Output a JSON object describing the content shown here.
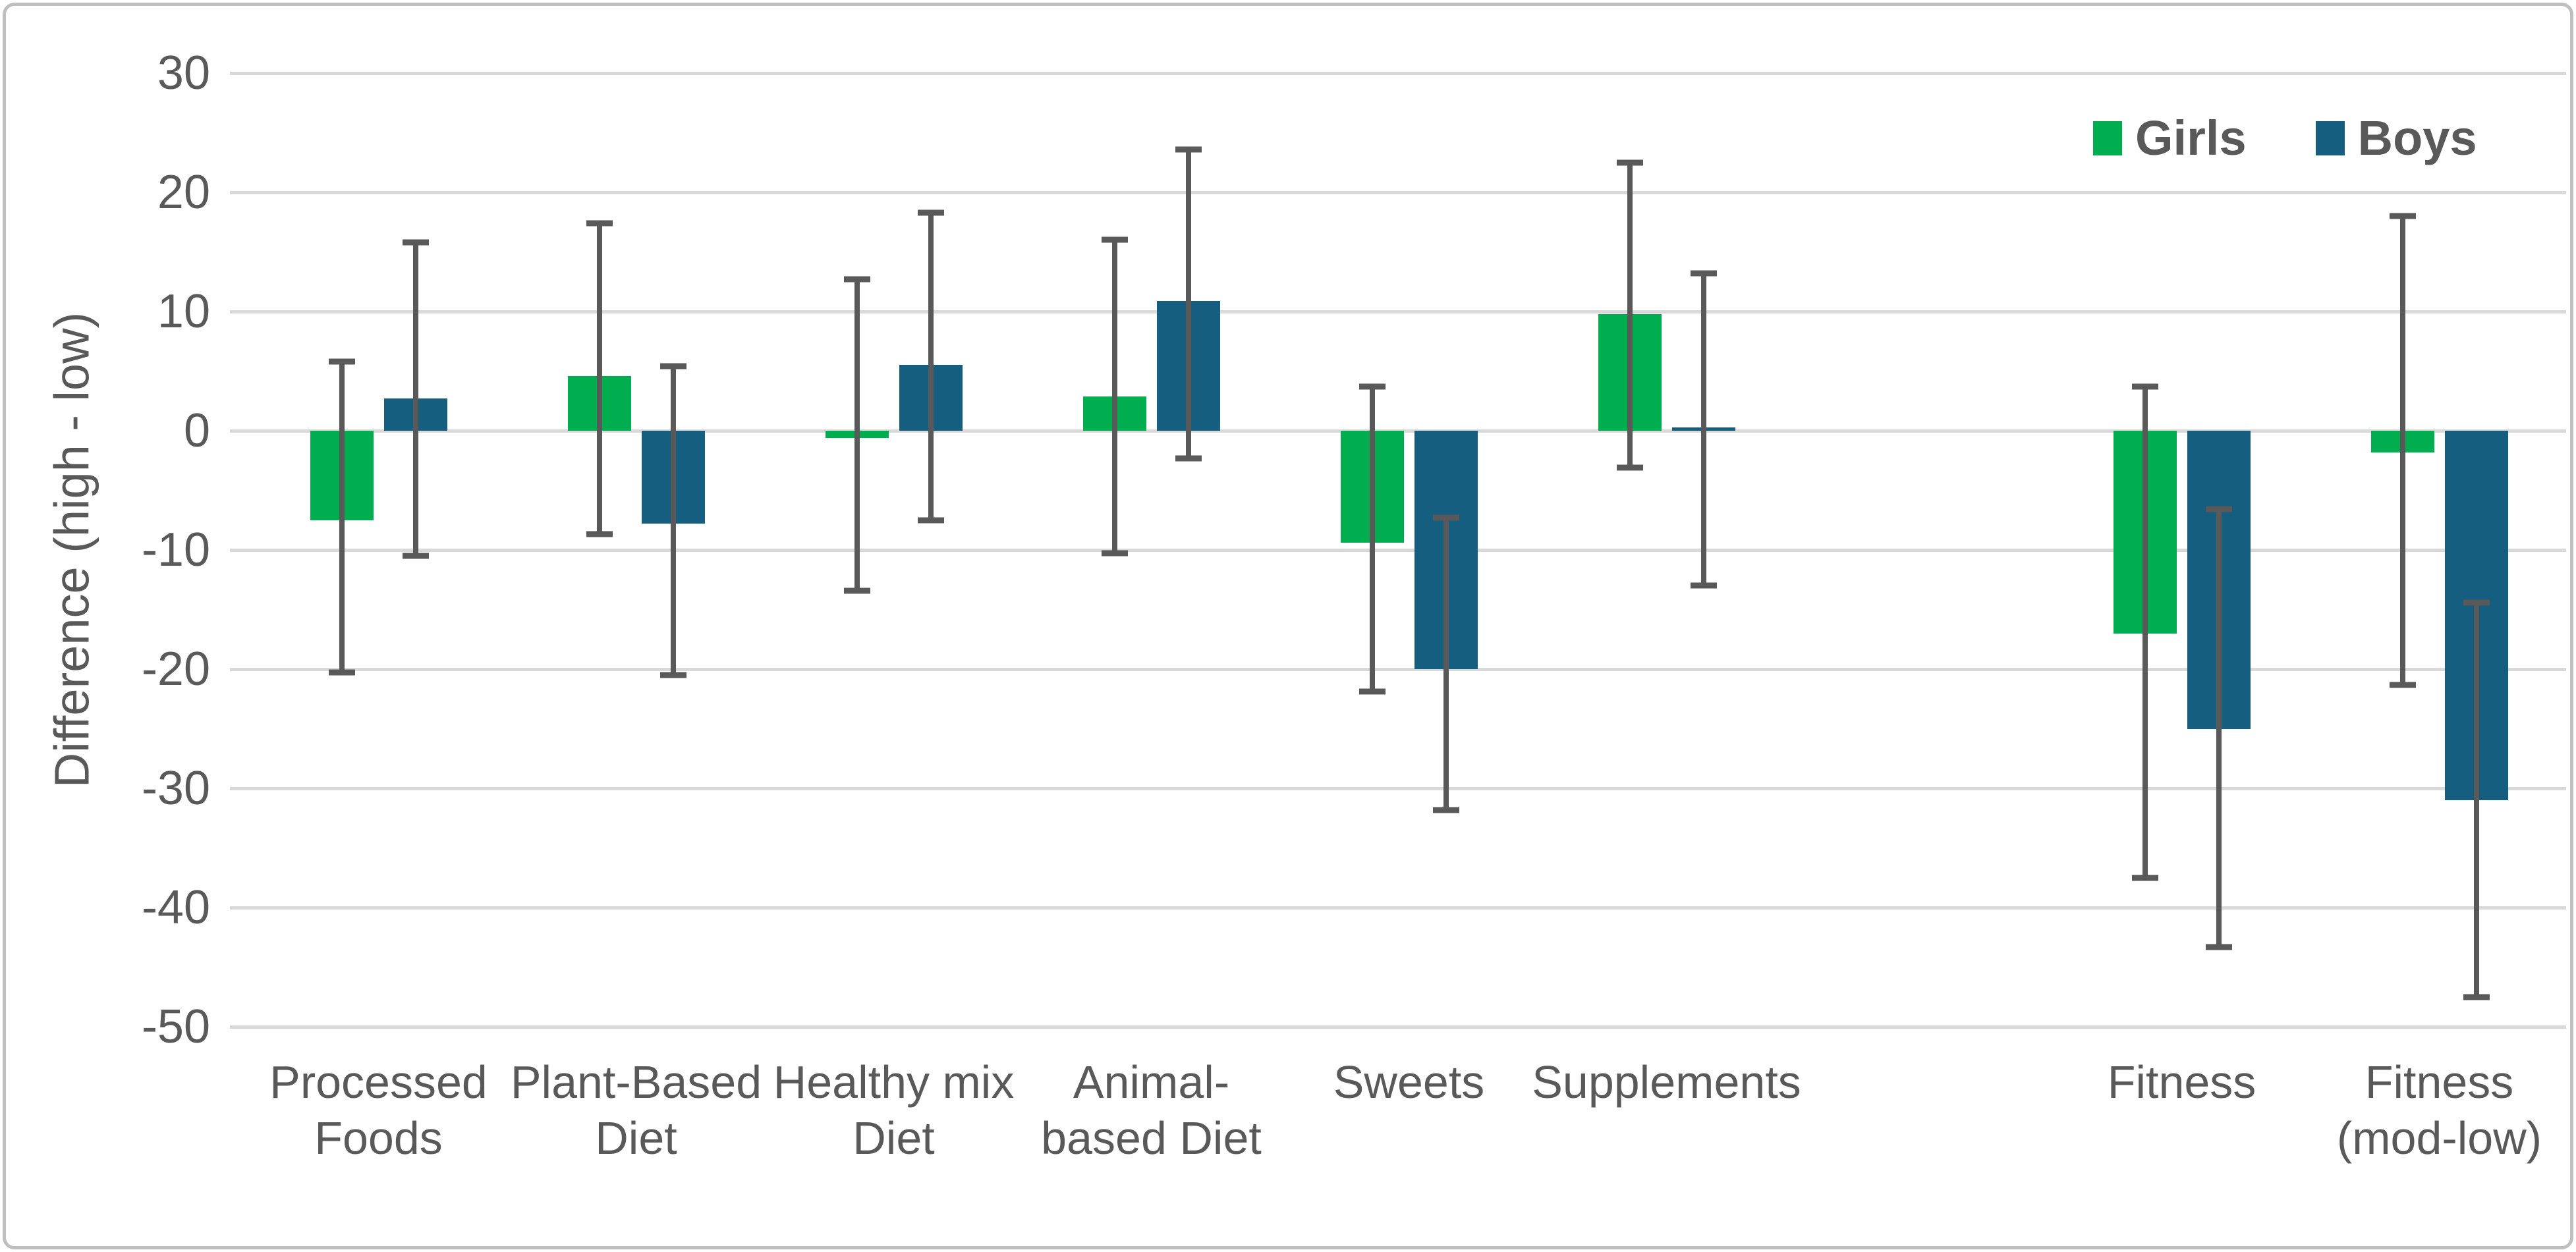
{
  "chart_data": {
    "type": "bar",
    "title": "",
    "ylabel": "Difference (high - low)",
    "xlabel": "",
    "ylim": [
      -50,
      30
    ],
    "yticks": [
      30,
      20,
      10,
      0,
      -10,
      -20,
      -30,
      -40,
      -50
    ],
    "grid": true,
    "legend_position": "top-right",
    "categories": [
      "Processed\nFoods",
      "Plant-Based\nDiet",
      "Healthy mix\nDiet",
      "Animal-\nbased Diet",
      "Sweets",
      "Supplements",
      "",
      "Fitness",
      "Fitness\n(mod-low)"
    ],
    "series": [
      {
        "name": "Girls",
        "color": "#00AE50",
        "values": [
          -7.5,
          4.6,
          -0.6,
          2.9,
          -9.4,
          9.8,
          null,
          -17.0,
          -1.8
        ],
        "error_hi": [
          5.8,
          17.4,
          12.7,
          16.0,
          3.7,
          22.5,
          null,
          3.7,
          18.0
        ],
        "error_lo": [
          -20.3,
          -8.7,
          -13.4,
          -10.3,
          -21.9,
          -3.1,
          null,
          -37.5,
          -21.3
        ]
      },
      {
        "name": "Boys",
        "color": "#155E80",
        "values": [
          2.7,
          -7.8,
          5.5,
          10.9,
          -20.0,
          0.25,
          null,
          -25.0,
          -31.0
        ],
        "error_hi": [
          15.8,
          5.4,
          18.3,
          23.6,
          -7.3,
          13.2,
          null,
          -6.6,
          -14.4
        ],
        "error_lo": [
          -10.5,
          -20.5,
          -7.5,
          -2.3,
          -31.8,
          -13.0,
          null,
          -43.3,
          -47.5
        ]
      }
    ],
    "colors": {
      "gridline": "#d9d9d9",
      "error_bar": "#595959",
      "text": "#595959",
      "frame_border": "#bfbfbf",
      "background": "#ffffff"
    }
  }
}
